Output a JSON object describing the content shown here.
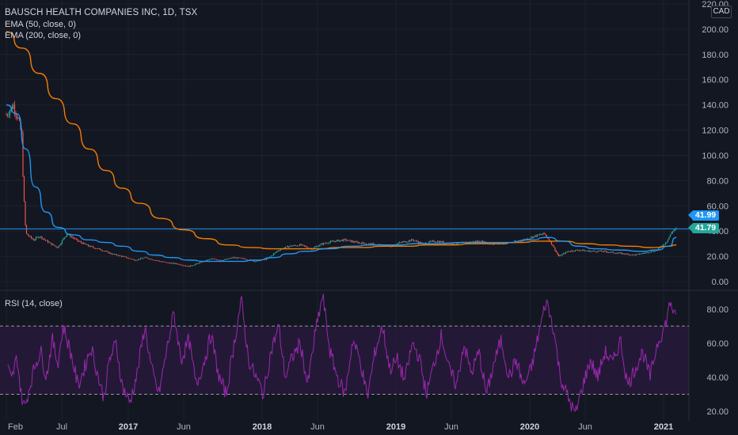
{
  "header": {
    "title": "BAUSCH HEALTH COMPANIES INC, 1D, TSX",
    "ema50_label": "EMA (50, close, 0)",
    "ema200_label": "EMA (200, close, 0)",
    "rsi_label": "RSI (14, close)",
    "currency": "CAD"
  },
  "price_tags": {
    "last_price": "41.99",
    "level_price": "41.79"
  },
  "colors": {
    "background": "#131722",
    "grid": "#1e222d",
    "ema50": "#2196f3",
    "ema200": "#f57c00",
    "horizontal_level": "#2196f3",
    "candle_up": "#26a69a",
    "candle_down": "#ef5350",
    "rsi_line": "#9c27b0",
    "rsi_band": "#2a1b3d",
    "rsi_bound_lines": "#b2b5be",
    "axis_text": "#b2b5be",
    "last_price_tag": "#2196f3",
    "level_tag": "#26a69a"
  },
  "chart_data": [
    {
      "type": "candlestick",
      "title": "BAUSCH HEALTH COMPANIES INC, 1D, TSX",
      "x_tick_labels": [
        "Feb",
        "Jul",
        "2017",
        "Jun",
        "2018",
        "Jun",
        "2019",
        "Jun",
        "2020",
        "Jun",
        "2021"
      ],
      "y_tick_labels": [
        "0.00",
        "20.00",
        "40.00",
        "60.00",
        "80.00",
        "100.00",
        "120.00",
        "140.00",
        "160.00",
        "180.00",
        "200.00",
        "220.00"
      ],
      "ylim": [
        0,
        220
      ],
      "y_axis_side": "right",
      "grid": true,
      "horizontal_level": 41.79,
      "last_price": 41.99,
      "series": [
        {
          "name": "Price",
          "x": [
            "2016-02-01",
            "2016-02-20",
            "2016-03-05",
            "2016-03-15",
            "2016-03-18",
            "2016-03-25",
            "2016-04-15",
            "2016-05-01",
            "2016-06-01",
            "2016-06-20",
            "2016-07-15",
            "2016-08-15",
            "2016-09-15",
            "2016-10-20",
            "2016-11-15",
            "2016-12-15",
            "2017-01-20",
            "2017-02-15",
            "2017-03-15",
            "2017-04-15",
            "2017-05-15",
            "2017-06-15",
            "2017-07-15",
            "2017-08-15",
            "2017-09-15",
            "2017-10-15",
            "2017-11-15",
            "2017-12-15",
            "2018-01-15",
            "2018-02-15",
            "2018-03-15",
            "2018-04-15",
            "2018-05-15",
            "2018-06-15",
            "2018-07-15",
            "2018-08-15",
            "2018-09-15",
            "2018-10-15",
            "2018-11-15",
            "2018-12-15",
            "2019-01-15",
            "2019-02-15",
            "2019-03-15",
            "2019-04-15",
            "2019-05-15",
            "2019-06-15",
            "2019-07-15",
            "2019-08-15",
            "2019-09-15",
            "2019-10-15",
            "2019-11-15",
            "2019-12-15",
            "2020-01-15",
            "2020-02-10",
            "2020-03-01",
            "2020-03-20",
            "2020-04-15",
            "2020-05-15",
            "2020-06-15",
            "2020-07-15",
            "2020-08-15",
            "2020-09-15",
            "2020-10-15",
            "2020-11-15",
            "2020-12-15",
            "2021-01-10",
            "2021-01-25",
            "2021-02-05"
          ],
          "values": [
            132,
            140,
            128,
            115,
            76,
            38,
            33,
            36,
            30,
            27,
            38,
            32,
            28,
            25,
            22,
            20,
            17,
            19,
            17,
            15,
            14,
            12,
            15,
            18,
            17,
            19,
            18,
            16,
            18,
            25,
            28,
            29,
            26,
            30,
            32,
            33,
            31,
            30,
            29,
            28,
            31,
            33,
            30,
            32,
            31,
            30,
            31,
            32,
            30,
            30,
            31,
            33,
            36,
            38,
            30,
            20,
            24,
            25,
            24,
            24,
            23,
            22,
            21,
            23,
            25,
            32,
            40,
            42
          ]
        },
        {
          "name": "EMA (50, close, 0)",
          "x": [
            "2016-02-01",
            "2016-03-01",
            "2016-03-25",
            "2016-04-20",
            "2016-05-20",
            "2016-06-20",
            "2016-08-01",
            "2016-09-15",
            "2016-11-01",
            "2016-12-15",
            "2017-02-01",
            "2017-03-15",
            "2017-05-01",
            "2017-06-15",
            "2017-08-01",
            "2017-09-15",
            "2017-11-01",
            "2017-12-15",
            "2018-02-01",
            "2018-03-15",
            "2018-05-01",
            "2018-07-01",
            "2018-09-01",
            "2018-11-01",
            "2019-01-01",
            "2019-03-01",
            "2019-05-01",
            "2019-07-01",
            "2019-09-01",
            "2019-11-01",
            "2020-01-01",
            "2020-02-20",
            "2020-04-01",
            "2020-05-15",
            "2020-07-01",
            "2020-09-01",
            "2020-11-01",
            "2020-12-15",
            "2021-01-15",
            "2021-02-05"
          ],
          "values": [
            140,
            133,
            105,
            75,
            55,
            43,
            37,
            33,
            31,
            28,
            24,
            21,
            19,
            17,
            16,
            16,
            16,
            17,
            19,
            22,
            24,
            26,
            28,
            29,
            29,
            30,
            30,
            31,
            31,
            31,
            33,
            35,
            32,
            28,
            26,
            25,
            24,
            25,
            28,
            35
          ]
        },
        {
          "name": "EMA (200, close, 0)",
          "x": [
            "2016-02-01",
            "2016-03-15",
            "2016-05-01",
            "2016-06-15",
            "2016-08-01",
            "2016-09-15",
            "2016-11-01",
            "2016-12-15",
            "2017-02-01",
            "2017-04-01",
            "2017-06-01",
            "2017-08-01",
            "2017-10-01",
            "2017-12-01",
            "2018-02-01",
            "2018-04-01",
            "2018-06-01",
            "2018-08-01",
            "2018-10-01",
            "2018-12-01",
            "2019-02-01",
            "2019-04-01",
            "2019-06-01",
            "2019-08-01",
            "2019-10-01",
            "2019-12-01",
            "2020-02-01",
            "2020-04-01",
            "2020-06-01",
            "2020-08-01",
            "2020-10-01",
            "2020-12-01",
            "2021-01-15",
            "2021-02-05"
          ],
          "values": [
            198,
            185,
            165,
            145,
            125,
            105,
            88,
            74,
            62,
            50,
            41,
            34,
            29,
            27,
            26,
            26,
            26,
            27,
            27,
            28,
            28,
            29,
            29,
            30,
            30,
            31,
            32,
            32,
            30,
            29,
            28,
            27,
            28,
            29
          ]
        }
      ]
    },
    {
      "type": "line",
      "title": "RSI (14, close)",
      "x_tick_labels": [
        "Feb",
        "Jul",
        "2017",
        "Jun",
        "2018",
        "Jun",
        "2019",
        "Jun",
        "2020",
        "Jun",
        "2021"
      ],
      "y_tick_labels": [
        "20.00",
        "40.00",
        "60.00",
        "80.00"
      ],
      "ylim": [
        15,
        92
      ],
      "bounds": [
        30,
        70
      ],
      "grid": false,
      "series": [
        {
          "name": "RSI (14, close)",
          "x": [
            "2016-02-05",
            "2016-02-15",
            "2016-03-01",
            "2016-03-12",
            "2016-03-22",
            "2016-04-05",
            "2016-04-20",
            "2016-05-05",
            "2016-05-20",
            "2016-06-05",
            "2016-06-20",
            "2016-07-05",
            "2016-07-25",
            "2016-08-15",
            "2016-09-01",
            "2016-09-20",
            "2016-10-10",
            "2016-10-25",
            "2016-11-10",
            "2016-11-28",
            "2016-12-15",
            "2017-01-05",
            "2017-01-25",
            "2017-02-15",
            "2017-03-05",
            "2017-03-25",
            "2017-04-15",
            "2017-05-05",
            "2017-05-25",
            "2017-06-15",
            "2017-07-05",
            "2017-07-25",
            "2017-08-15",
            "2017-09-05",
            "2017-09-25",
            "2017-10-15",
            "2017-11-05",
            "2017-11-25",
            "2017-12-15",
            "2018-01-05",
            "2018-01-25",
            "2018-02-15",
            "2018-03-05",
            "2018-03-25",
            "2018-04-15",
            "2018-05-05",
            "2018-05-25",
            "2018-06-15",
            "2018-07-05",
            "2018-07-25",
            "2018-08-15",
            "2018-09-05",
            "2018-09-25",
            "2018-10-15",
            "2018-11-05",
            "2018-11-25",
            "2018-12-15",
            "2019-01-05",
            "2019-01-25",
            "2019-02-15",
            "2019-03-05",
            "2019-03-25",
            "2019-04-15",
            "2019-05-05",
            "2019-05-25",
            "2019-06-15",
            "2019-07-05",
            "2019-07-25",
            "2019-08-15",
            "2019-09-05",
            "2019-09-25",
            "2019-10-15",
            "2019-11-05",
            "2019-11-25",
            "2019-12-15",
            "2020-01-05",
            "2020-01-25",
            "2020-02-15",
            "2020-03-05",
            "2020-03-25",
            "2020-04-15",
            "2020-05-05",
            "2020-05-25",
            "2020-06-15",
            "2020-07-05",
            "2020-07-25",
            "2020-08-15",
            "2020-09-05",
            "2020-09-25",
            "2020-10-15",
            "2020-11-05",
            "2020-11-25",
            "2020-12-15",
            "2021-01-05",
            "2021-01-20",
            "2021-02-05"
          ],
          "values": [
            45,
            38,
            52,
            30,
            22,
            35,
            48,
            55,
            40,
            62,
            48,
            70,
            55,
            35,
            45,
            58,
            40,
            28,
            50,
            60,
            35,
            25,
            42,
            70,
            45,
            30,
            55,
            78,
            50,
            62,
            35,
            48,
            65,
            40,
            30,
            58,
            85,
            50,
            40,
            30,
            55,
            70,
            40,
            52,
            60,
            35,
            65,
            88,
            55,
            40,
            30,
            62,
            50,
            28,
            55,
            70,
            45,
            50,
            38,
            60,
            52,
            30,
            48,
            65,
            45,
            35,
            60,
            42,
            55,
            30,
            48,
            62,
            40,
            50,
            35,
            45,
            65,
            85,
            70,
            40,
            28,
            18,
            35,
            50,
            40,
            55,
            48,
            62,
            35,
            45,
            55,
            40,
            60,
            70,
            85,
            72
          ]
        }
      ]
    }
  ]
}
